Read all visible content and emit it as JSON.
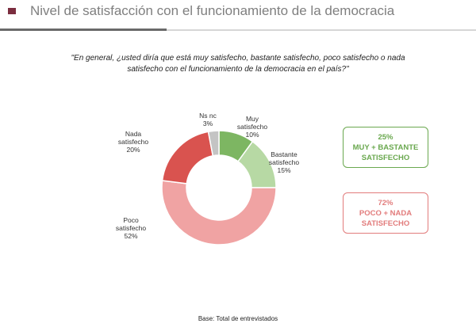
{
  "chart_data": {
    "type": "donut",
    "title": "Nivel de satisfacción con el funcionamiento de la democracia",
    "subtitle": "\"En general, ¿usted diría que está muy satisfecho, bastante satisfecho, poco satisfecho o nada satisfecho con el funcionamiento de la democracia en el país?\"",
    "categories": [
      "Muy satisfecho",
      "Bastante satisfecho",
      "Poco satisfecho",
      "Nada satisfecho",
      "Ns nc"
    ],
    "values": [
      10,
      15,
      52,
      20,
      3
    ],
    "value_labels": [
      "10%",
      "15%",
      "52%",
      "20%",
      "3%"
    ],
    "colors": [
      "#7db662",
      "#b7d9a4",
      "#f0a3a3",
      "#d9534f",
      "#c4c4c4"
    ],
    "annotations": [
      {
        "label": "25%",
        "text": "MUY + BASTANTE SATISFECHO",
        "color": "#6aa84f"
      },
      {
        "label": "72%",
        "text": "POCO + NADA SATISFECHO",
        "color": "#e27c7c"
      }
    ],
    "footnote": "Base: Total de entrevistados"
  }
}
